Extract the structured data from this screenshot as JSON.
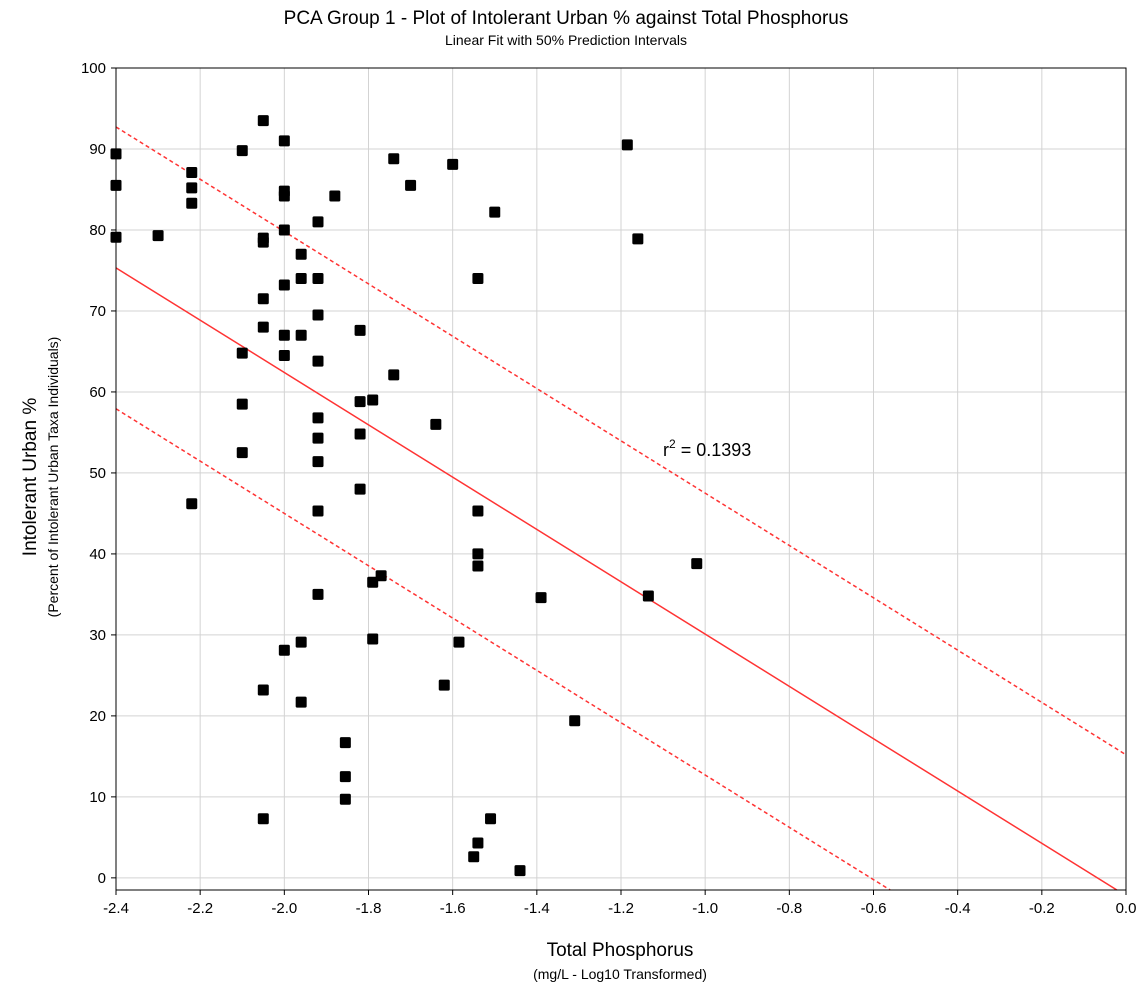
{
  "chart_data": {
    "type": "scatter",
    "title": "PCA Group 1 - Plot of Intolerant Urban % against Total Phosphorus",
    "subtitle": "Linear Fit with 50% Prediction Intervals",
    "xlabel": "Total Phosphorus",
    "xlabel_sub": "(mg/L - Log10 Transformed)",
    "ylabel": "Intolerant Urban %",
    "ylabel_sub": "(Percent of Intolerant Urban Taxa Individuals)",
    "xlim": [
      -2.4,
      0.0
    ],
    "ylim": [
      -1.5,
      100
    ],
    "x_ticks": [
      "-2.4",
      "-2.2",
      "-2.0",
      "-1.8",
      "-1.6",
      "-1.4",
      "-1.2",
      "-1.0",
      "-0.8",
      "-0.6",
      "-0.4",
      "-0.2",
      "0.0"
    ],
    "y_ticks": [
      "0",
      "10",
      "20",
      "30",
      "40",
      "50",
      "60",
      "70",
      "80",
      "90",
      "100"
    ],
    "grid": true,
    "annotation": {
      "r_prefix": "r",
      "superscript": "2",
      "value_text": " = 0.1393"
    },
    "points": [
      [
        -2.4,
        89.4
      ],
      [
        -2.4,
        85.5
      ],
      [
        -2.4,
        79.1
      ],
      [
        -2.3,
        79.3
      ],
      [
        -2.22,
        87.1
      ],
      [
        -2.22,
        85.2
      ],
      [
        -2.22,
        83.3
      ],
      [
        -2.22,
        46.2
      ],
      [
        -2.1,
        89.8
      ],
      [
        -2.1,
        64.8
      ],
      [
        -2.1,
        58.5
      ],
      [
        -2.1,
        52.5
      ],
      [
        -2.05,
        93.5
      ],
      [
        -2.05,
        79.0
      ],
      [
        -2.05,
        78.5
      ],
      [
        -2.05,
        71.5
      ],
      [
        -2.05,
        68.0
      ],
      [
        -2.05,
        23.2
      ],
      [
        -2.05,
        7.3
      ],
      [
        -2.0,
        91.0
      ],
      [
        -2.0,
        84.8
      ],
      [
        -2.0,
        84.2
      ],
      [
        -2.0,
        80.0
      ],
      [
        -2.0,
        73.2
      ],
      [
        -2.0,
        67.0
      ],
      [
        -2.0,
        64.5
      ],
      [
        -2.0,
        28.1
      ],
      [
        -1.96,
        77.0
      ],
      [
        -1.96,
        74.0
      ],
      [
        -1.96,
        67.0
      ],
      [
        -1.96,
        29.1
      ],
      [
        -1.96,
        21.7
      ],
      [
        -1.92,
        81.0
      ],
      [
        -1.92,
        74.0
      ],
      [
        -1.92,
        69.5
      ],
      [
        -1.92,
        63.8
      ],
      [
        -1.92,
        56.8
      ],
      [
        -1.92,
        54.3
      ],
      [
        -1.92,
        51.4
      ],
      [
        -1.92,
        45.3
      ],
      [
        -1.92,
        35.0
      ],
      [
        -1.88,
        84.2
      ],
      [
        -1.855,
        16.7
      ],
      [
        -1.855,
        12.5
      ],
      [
        -1.855,
        9.7
      ],
      [
        -1.82,
        67.6
      ],
      [
        -1.82,
        58.8
      ],
      [
        -1.82,
        54.8
      ],
      [
        -1.82,
        48.0
      ],
      [
        -1.79,
        59.0
      ],
      [
        -1.79,
        36.5
      ],
      [
        -1.79,
        29.5
      ],
      [
        -1.77,
        37.3
      ],
      [
        -1.74,
        88.8
      ],
      [
        -1.74,
        62.1
      ],
      [
        -1.7,
        85.5
      ],
      [
        -1.64,
        56.0
      ],
      [
        -1.62,
        23.8
      ],
      [
        -1.6,
        88.1
      ],
      [
        -1.585,
        29.1
      ],
      [
        -1.55,
        2.6
      ],
      [
        -1.54,
        74.0
      ],
      [
        -1.54,
        45.3
      ],
      [
        -1.54,
        40.0
      ],
      [
        -1.54,
        38.5
      ],
      [
        -1.54,
        4.3
      ],
      [
        -1.51,
        7.3
      ],
      [
        -1.5,
        82.2
      ],
      [
        -1.44,
        0.9
      ],
      [
        -1.39,
        34.6
      ],
      [
        -1.31,
        19.4
      ],
      [
        -1.185,
        90.5
      ],
      [
        -1.16,
        78.9
      ],
      [
        -1.135,
        34.8
      ],
      [
        -1.02,
        38.8
      ]
    ],
    "fit_line": {
      "intercept": -2.2,
      "slope": -32.3
    },
    "prediction_band_offset": 17.4,
    "colors": {
      "fit": "#ff3333",
      "points": "#000000",
      "grid": "#d3d3d3",
      "axis": "#000000"
    }
  }
}
